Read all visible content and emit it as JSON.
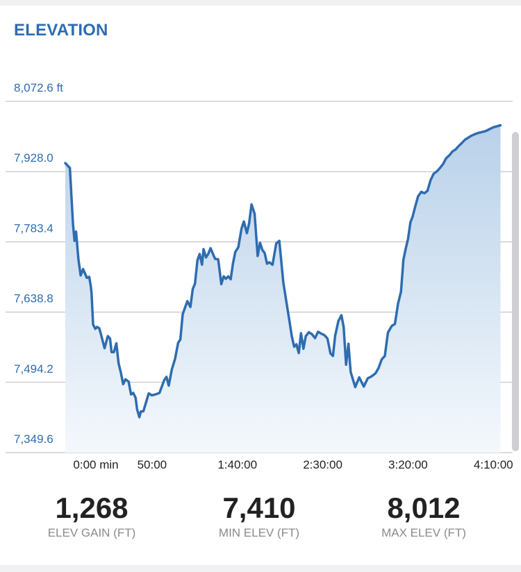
{
  "chart_data": {
    "type": "area",
    "title": "ELEVATION",
    "y_tick_labels": [
      "8,072.6 ft",
      "7,928.0",
      "7,783.4",
      "7,638.8",
      "7,494.2",
      "7,349.6"
    ],
    "y_ticks": [
      8072.6,
      7928.0,
      7783.4,
      7638.8,
      7494.2,
      7349.6
    ],
    "ylim": [
      7349.6,
      8072.6
    ],
    "x_tick_labels": [
      "0:00 min",
      "50:00",
      "1:40:00",
      "2:30:00",
      "3:20:00",
      "4:10:00"
    ],
    "x_ticks": [
      0,
      50,
      100,
      150,
      200,
      250
    ],
    "xlim": [
      0,
      256
    ],
    "grid": true,
    "colors": {
      "line": "#2e6cb0",
      "fill_top": "#b9d1ea",
      "fill_bottom": "#f4f8fc"
    },
    "series": [
      {
        "x": [
          0,
          2.7,
          4.5,
          5.4,
          6.3,
          7.7,
          9,
          10.4,
          12.6,
          14,
          14.9,
          15.4,
          16.3,
          17.6,
          18.6,
          19.9,
          20.8,
          23,
          24.9,
          26.2,
          27.1,
          28.5,
          29.9,
          31.2,
          32.6,
          33.9,
          35.3,
          37.1,
          38.5,
          39.8,
          41.2,
          42.1,
          43.4,
          44.3,
          45.7,
          47,
          48.9,
          50.7,
          52.9,
          55.2,
          57.9,
          59.3,
          60.6,
          62.4,
          64.3,
          66.1,
          67.4,
          68.8,
          70.1,
          71.5,
          73.3,
          74.7,
          76,
          77.4,
          78.7,
          80.1,
          81,
          82.4,
          83.7,
          85.1,
          86.4,
          87.8,
          89.6,
          91.4,
          92.8,
          94.1,
          95.5,
          96.9,
          98.2,
          99.6,
          101.4,
          103.2,
          104.6,
          106.4,
          107.7,
          109.1,
          110.9,
          112.7,
          114.1,
          115.5,
          116.8,
          118.2,
          119.5,
          121.4,
          123.6,
          125.4,
          127.7,
          129.5,
          131.4,
          132.7,
          134.1,
          135.4,
          136.8,
          138.1,
          139.5,
          140.9,
          142.7,
          144.5,
          146.3,
          148.1,
          150,
          151.8,
          153.6,
          155.4,
          156.8,
          158.1,
          160,
          161.8,
          163.1,
          164.5,
          165.9,
          167.2,
          169.9,
          172.2,
          174.9,
          177.2,
          179.4,
          181.7,
          183.5,
          185.4,
          187.2,
          189,
          191.3,
          193.1,
          194.9,
          196.7,
          198.1,
          199.5,
          200.8,
          202.2,
          203.5,
          204.9,
          206.7,
          208.6,
          210.4,
          212.2,
          214,
          215.8,
          217.7,
          219.5,
          221.3,
          223.1,
          225,
          226.8,
          228.6,
          230.4,
          232.2,
          234.1,
          235.9,
          237.7,
          239.5,
          241.8,
          244.1,
          246.3,
          248.6,
          250.9,
          253.1,
          255
        ],
        "y": [
          7934,
          7924,
          7808,
          7774,
          7793,
          7736,
          7703,
          7716,
          7698,
          7700,
          7682,
          7666,
          7602,
          7593,
          7597,
          7594,
          7583,
          7553,
          7578,
          7573,
          7545,
          7545,
          7563,
          7522,
          7502,
          7479,
          7489,
          7484,
          7458,
          7461,
          7451,
          7427,
          7411,
          7423,
          7423,
          7438,
          7460,
          7456,
          7458,
          7461,
          7487,
          7494,
          7476,
          7509,
          7531,
          7564,
          7571,
          7623,
          7636,
          7650,
          7638,
          7675,
          7686,
          7734,
          7747,
          7725,
          7757,
          7740,
          7747,
          7759,
          7748,
          7737,
          7736,
          7685,
          7701,
          7696,
          7701,
          7695,
          7727,
          7751,
          7761,
          7799,
          7814,
          7790,
          7810,
          7849,
          7830,
          7743,
          7770,
          7755,
          7749,
          7727,
          7730,
          7725,
          7769,
          7774,
          7689,
          7649,
          7607,
          7578,
          7556,
          7561,
          7543,
          7584,
          7552,
          7578,
          7586,
          7582,
          7574,
          7587,
          7583,
          7580,
          7573,
          7542,
          7537,
          7579,
          7609,
          7621,
          7597,
          7519,
          7562,
          7504,
          7473,
          7493,
          7474,
          7491,
          7495,
          7501,
          7512,
          7530,
          7537,
          7585,
          7599,
          7603,
          7644,
          7670,
          7735,
          7759,
          7778,
          7812,
          7824,
          7843,
          7866,
          7875,
          7872,
          7877,
          7899,
          7912,
          7917,
          7924,
          7932,
          7944,
          7950,
          7958,
          7962,
          7969,
          7975,
          7982,
          7986,
          7990,
          7993,
          7996,
          7998,
          8000,
          8004,
          8008,
          8010,
          8012
        ]
      }
    ]
  },
  "stats": [
    {
      "value": "1,268",
      "label": "ELEV GAIN (FT)"
    },
    {
      "value": "7,410",
      "label": "MIN ELEV (FT)"
    },
    {
      "value": "8,012",
      "label": "MAX ELEV (FT)"
    }
  ]
}
